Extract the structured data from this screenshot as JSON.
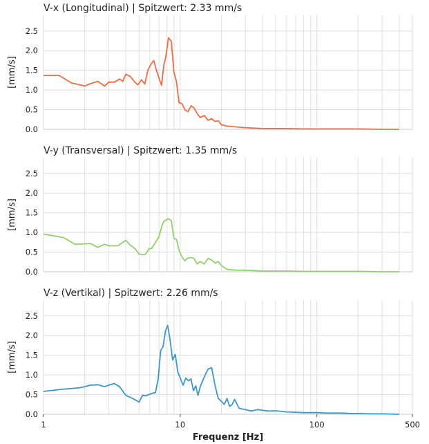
{
  "chart_data": [
    {
      "type": "line",
      "title": "V-x (Longitudinal) | Spitzwert: 2.33 mm/s",
      "ylabel": "[mm/s]",
      "xscale": "log",
      "xlim": [
        1,
        500
      ],
      "ylim": [
        0,
        2.9
      ],
      "yticks": [
        "0.0",
        "0.5",
        "1.0",
        "1.5",
        "2.0",
        "2.5"
      ],
      "color": "#f26b43",
      "grid": true,
      "x": [
        1,
        1.3,
        1.6,
        1.8,
        2.0,
        2.2,
        2.5,
        2.8,
        3.0,
        3.3,
        3.6,
        3.8,
        4.0,
        4.3,
        4.6,
        4.9,
        5.2,
        5.5,
        5.8,
        6.1,
        6.4,
        6.7,
        7.0,
        7.3,
        7.6,
        7.8,
        8.0,
        8.2,
        8.6,
        9.0,
        9.4,
        9.8,
        10.3,
        10.8,
        11.4,
        12.0,
        12.6,
        13.3,
        14.0,
        15.0,
        16.0,
        17.0,
        18.0,
        19.0,
        20.0,
        22.0,
        24.0,
        26.0,
        30.0,
        35.0,
        40.0,
        50.0,
        60.0,
        80.0,
        100.0,
        150.0,
        200.0,
        300.0,
        400.0
      ],
      "y": [
        1.37,
        1.37,
        1.18,
        1.14,
        1.1,
        1.16,
        1.22,
        1.1,
        1.2,
        1.2,
        1.28,
        1.22,
        1.4,
        1.35,
        1.22,
        1.13,
        1.26,
        1.15,
        1.5,
        1.65,
        1.75,
        1.5,
        1.3,
        1.12,
        1.65,
        1.8,
        2.05,
        2.33,
        2.24,
        1.45,
        1.2,
        0.68,
        0.65,
        0.5,
        0.45,
        0.6,
        0.55,
        0.4,
        0.3,
        0.35,
        0.23,
        0.27,
        0.2,
        0.22,
        0.12,
        0.08,
        0.07,
        0.06,
        0.04,
        0.03,
        0.02,
        0.02,
        0.02,
        0.01,
        0.01,
        0.01,
        0.01,
        0.0,
        0.0
      ]
    },
    {
      "type": "line",
      "title": "V-y (Transversal) | Spitzwert: 1.35 mm/s",
      "ylabel": "[mm/s]",
      "xscale": "log",
      "xlim": [
        1,
        500
      ],
      "ylim": [
        0,
        2.9
      ],
      "yticks": [
        "0.0",
        "0.5",
        "1.0",
        "1.5",
        "2.0",
        "2.5"
      ],
      "color": "#8ed16b",
      "grid": true,
      "x": [
        1,
        1.4,
        1.7,
        2.0,
        2.2,
        2.5,
        2.8,
        3.0,
        3.5,
        4.0,
        4.3,
        4.7,
        5.0,
        5.3,
        5.6,
        5.9,
        6.2,
        6.6,
        7.0,
        7.4,
        7.6,
        7.9,
        8.2,
        8.6,
        9.0,
        9.4,
        9.8,
        10.3,
        10.8,
        11.4,
        12.0,
        12.6,
        13.3,
        14.0,
        15.0,
        16.0,
        17.0,
        18.0,
        19.0,
        20.0,
        22.0,
        24.0,
        26.0,
        30.0,
        35.0,
        40.0,
        50.0,
        60.0,
        80.0,
        100.0,
        150.0,
        200.0,
        300.0,
        400.0
      ],
      "y": [
        0.96,
        0.87,
        0.7,
        0.71,
        0.72,
        0.62,
        0.7,
        0.66,
        0.66,
        0.8,
        0.68,
        0.58,
        0.45,
        0.44,
        0.45,
        0.58,
        0.6,
        0.75,
        0.9,
        1.2,
        1.28,
        1.32,
        1.35,
        1.3,
        0.85,
        0.82,
        0.55,
        0.38,
        0.28,
        0.35,
        0.36,
        0.34,
        0.2,
        0.26,
        0.2,
        0.34,
        0.3,
        0.22,
        0.26,
        0.16,
        0.06,
        0.05,
        0.04,
        0.04,
        0.03,
        0.02,
        0.02,
        0.02,
        0.01,
        0.01,
        0.01,
        0.01,
        0.0,
        0.0
      ]
    },
    {
      "type": "line",
      "title": "V-z (Vertikal) | Spitzwert: 2.26 mm/s",
      "ylabel": "[mm/s]",
      "xlabel": "Frequenz [Hz]",
      "xscale": "log",
      "xlim": [
        1,
        500
      ],
      "ylim": [
        0,
        2.9
      ],
      "yticks": [
        "0.0",
        "0.5",
        "1.0",
        "1.5",
        "2.0",
        "2.5"
      ],
      "xticks": [
        "1",
        "10",
        "100",
        "500"
      ],
      "color": "#3a97c9",
      "grid": true,
      "x": [
        1,
        1.4,
        1.8,
        2.0,
        2.2,
        2.5,
        2.8,
        3.0,
        3.3,
        3.6,
        4.0,
        4.5,
        5.0,
        5.3,
        5.6,
        6.0,
        6.3,
        6.6,
        6.9,
        7.2,
        7.5,
        7.8,
        8.1,
        8.4,
        8.8,
        9.2,
        9.6,
        10.0,
        10.5,
        11.0,
        11.5,
        12.0,
        12.5,
        13.0,
        13.5,
        14.0,
        15.0,
        16.0,
        17.0,
        18.0,
        19.0,
        20.0,
        21.0,
        22.0,
        23.0,
        24.0,
        25.0,
        27.0,
        30.0,
        33.0,
        37.0,
        40.0,
        45.0,
        50.0,
        60.0,
        70.0,
        80.0,
        100.0,
        120.0,
        150.0,
        180.0,
        200.0,
        250.0,
        300.0,
        400.0
      ],
      "y": [
        0.58,
        0.64,
        0.67,
        0.7,
        0.74,
        0.75,
        0.7,
        0.74,
        0.78,
        0.7,
        0.48,
        0.4,
        0.31,
        0.48,
        0.47,
        0.51,
        0.54,
        0.55,
        0.9,
        1.62,
        1.72,
        2.12,
        2.26,
        1.92,
        1.38,
        1.52,
        1.08,
        0.92,
        0.74,
        0.92,
        0.85,
        0.9,
        0.6,
        0.72,
        0.48,
        0.7,
        0.95,
        1.15,
        1.18,
        0.72,
        0.4,
        0.33,
        0.25,
        0.4,
        0.2,
        0.25,
        0.38,
        0.15,
        0.12,
        0.08,
        0.12,
        0.1,
        0.08,
        0.09,
        0.06,
        0.05,
        0.04,
        0.04,
        0.03,
        0.03,
        0.02,
        0.02,
        0.01,
        0.01,
        0.0
      ]
    }
  ]
}
